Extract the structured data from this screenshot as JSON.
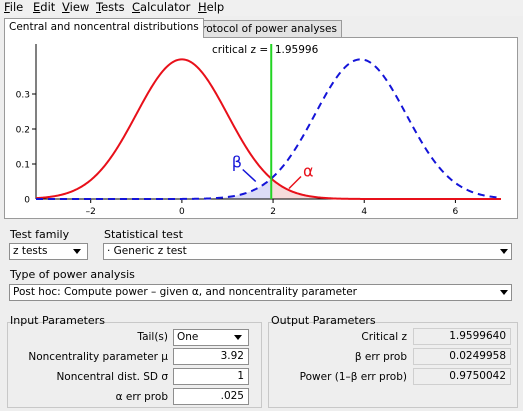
{
  "menu": [
    "File",
    "Edit",
    "View",
    "Tests",
    "Calculator",
    "Help"
  ],
  "menu_underline": [
    "F",
    "E",
    "V",
    "T",
    "C",
    "H"
  ],
  "tabs": {
    "central": "Central and noncentral distributions",
    "protocol": "Protocol of power analyses"
  },
  "plot": {
    "critical_label": "critical z =  1.95996",
    "beta_label": "β",
    "alpha_label": "α"
  },
  "chart_data": {
    "type": "line",
    "critical_z": 1.95996,
    "xlim": [
      -3.2,
      7
    ],
    "ylim": [
      0,
      0.42
    ],
    "x_ticks": [
      -2,
      0,
      2,
      4,
      6
    ],
    "x_tick_labels": [
      "–2",
      "0",
      "2",
      "4",
      "6"
    ],
    "y_ticks": [
      0.1,
      0.2,
      0.3
    ],
    "y_tick_labels": [
      "0.1",
      "0.2",
      "0.3"
    ],
    "y_zero_label": "0",
    "series": [
      {
        "distribution": "normal",
        "mean": 0,
        "sd": 1,
        "color": "#e8101a",
        "style": "solid"
      },
      {
        "distribution": "normal",
        "mean": 3.92,
        "sd": 1,
        "color": "#1414d8",
        "style": "dashed"
      }
    ],
    "critical_line_color": "#22d422"
  },
  "test_family": {
    "label": "Test family",
    "value": "z tests"
  },
  "statistical_test": {
    "label": "Statistical test",
    "value": "· Generic z test"
  },
  "power_analysis": {
    "label": "Type of power analysis",
    "value": "Post hoc: Compute power – given α, and noncentrality parameter"
  },
  "input": {
    "title": "Input Parameters",
    "tails_label": "Tail(s)",
    "tails_value": "One",
    "ncp_label": "Noncentrality parameter μ",
    "ncp_value": "3.92",
    "sd_label": "Noncentral dist. SD σ",
    "sd_value": "1",
    "alpha_label": "α err prob",
    "alpha_value": ".025"
  },
  "output": {
    "title": "Output Parameters",
    "critical_label": "Critical z",
    "critical_value": "1.9599640",
    "beta_label": "β err prob",
    "beta_value": "0.0249958",
    "power_label": "Power (1–β err prob)",
    "power_value": "0.9750042"
  }
}
